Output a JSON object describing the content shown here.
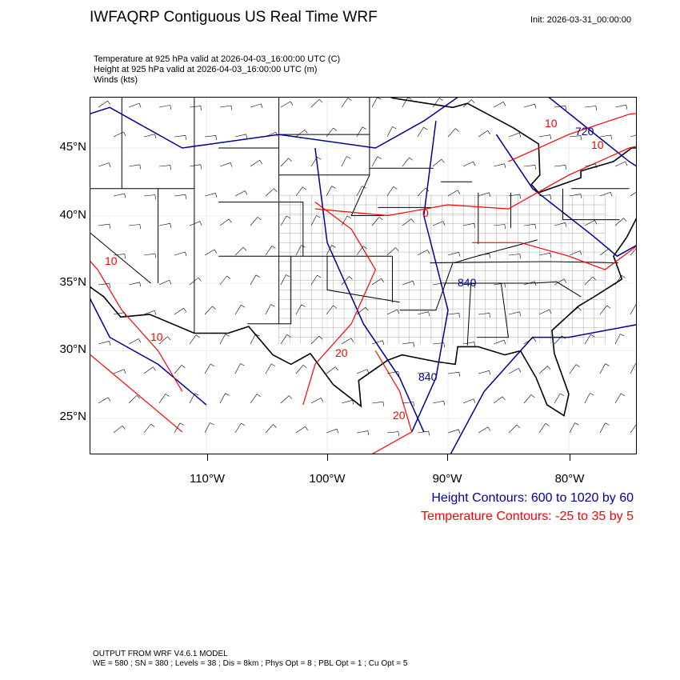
{
  "title": "IWFAQRP Contiguous US Real Time WRF",
  "init": "Init: 2026-03-31_00:00:00",
  "fields": [
    "Temperature at 925 hPa valid at 2026-04-03_16:00:00 UTC   (C)",
    "Height at 925 hPa valid at 2026-04-03_16:00:00 UTC   (m)",
    "Winds   (kts)"
  ],
  "lat_labels": [
    "45°N",
    "40°N",
    "35°N",
    "30°N",
    "25°N"
  ],
  "lon_labels": [
    "110°W",
    "100°W",
    "90°W",
    "80°W"
  ],
  "legend": {
    "height": "Height Contours: 600 to 1020 by 60",
    "temperature": "Temperature Contours: -25 to 35 by 5"
  },
  "contour_labels": [
    {
      "text": "10",
      "kind": "temperature"
    },
    {
      "text": "720",
      "kind": "height"
    },
    {
      "text": "10",
      "kind": "temperature"
    },
    {
      "text": "0",
      "kind": "temperature"
    },
    {
      "text": "10",
      "kind": "temperature"
    },
    {
      "text": "10",
      "kind": "temperature"
    },
    {
      "text": "840",
      "kind": "height"
    },
    {
      "text": "20",
      "kind": "temperature"
    },
    {
      "text": "840",
      "kind": "height"
    },
    {
      "text": "20",
      "kind": "temperature"
    }
  ],
  "colors": {
    "height": "#000099",
    "temperature": "#ff0000",
    "boundaries": "#000000"
  },
  "footer": [
    "OUTPUT FROM WRF V4.6.1 MODEL",
    "WE = 580 ; SN = 380 ; Levels = 38 ; Dis = 8km ; Phys Opt = 8 ; PBL Opt = 1 ; Cu Opt = 5"
  ]
}
